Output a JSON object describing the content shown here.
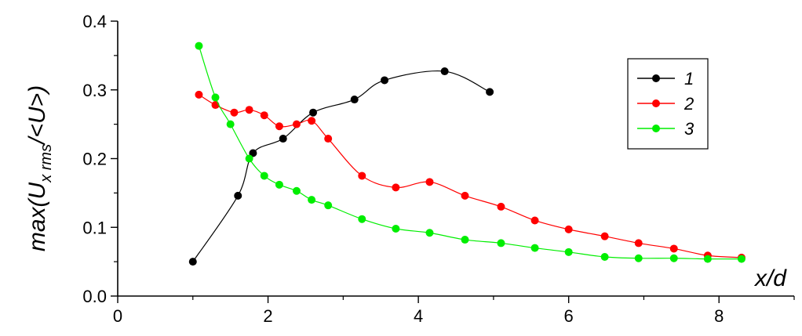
{
  "chart_data": {
    "type": "line",
    "xlabel": "x/d",
    "ylabel": {
      "prefix": "max(U",
      "subscript": "x rms",
      "suffix": "/<U>)"
    },
    "xlim": [
      0,
      9
    ],
    "ylim": [
      0,
      0.4
    ],
    "xticks": [
      0,
      2,
      4,
      6,
      8
    ],
    "xtick_labels": [
      "0",
      "2",
      "4",
      "6",
      "8"
    ],
    "yticks": [
      0.0,
      0.1,
      0.2,
      0.3,
      0.4
    ],
    "ytick_labels": [
      "0.0",
      "0.1",
      "0.2",
      "0.3",
      "0.4"
    ],
    "grid": false,
    "legend_position": "top-right",
    "series": [
      {
        "name": "1",
        "color": "#000000",
        "x": [
          1.0,
          1.6,
          1.8,
          2.2,
          2.6,
          3.15,
          3.55,
          4.35,
          4.95
        ],
        "y": [
          0.05,
          0.146,
          0.208,
          0.229,
          0.267,
          0.286,
          0.314,
          0.327,
          0.297
        ]
      },
      {
        "name": "2",
        "color": "#ff0000",
        "x": [
          1.08,
          1.3,
          1.55,
          1.75,
          1.95,
          2.15,
          2.38,
          2.58,
          2.8,
          3.25,
          3.7,
          4.15,
          4.62,
          5.1,
          5.55,
          6.0,
          6.48,
          6.93,
          7.4,
          7.85,
          8.3
        ],
        "y": [
          0.293,
          0.278,
          0.267,
          0.271,
          0.263,
          0.247,
          0.25,
          0.255,
          0.229,
          0.175,
          0.158,
          0.166,
          0.146,
          0.13,
          0.11,
          0.097,
          0.087,
          0.077,
          0.069,
          0.059,
          0.056
        ]
      },
      {
        "name": "3",
        "color": "#00ee00",
        "x": [
          1.08,
          1.3,
          1.5,
          1.75,
          1.95,
          2.15,
          2.38,
          2.58,
          2.8,
          3.25,
          3.7,
          4.15,
          4.62,
          5.1,
          5.55,
          6.0,
          6.48,
          6.93,
          7.4,
          7.85,
          8.3
        ],
        "y": [
          0.364,
          0.289,
          0.25,
          0.2,
          0.175,
          0.162,
          0.153,
          0.14,
          0.132,
          0.112,
          0.098,
          0.092,
          0.082,
          0.077,
          0.07,
          0.064,
          0.057,
          0.055,
          0.055,
          0.054,
          0.054
        ]
      }
    ]
  }
}
